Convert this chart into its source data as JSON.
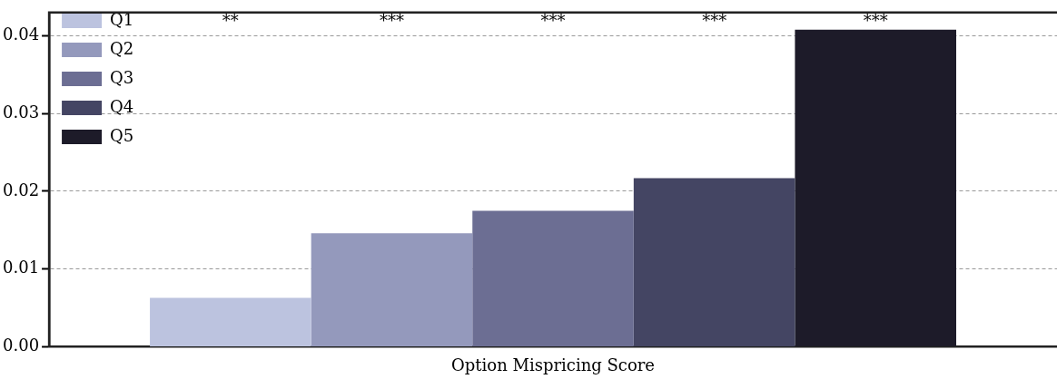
{
  "chart_data": {
    "type": "bar",
    "categories": [
      "Option Mispricing Score"
    ],
    "series": [
      {
        "name": "Q1",
        "color": "#bcc3df",
        "values": [
          0.0063
        ]
      },
      {
        "name": "Q2",
        "color": "#9499bc",
        "values": [
          0.0146
        ]
      },
      {
        "name": "Q3",
        "color": "#6c6e93",
        "values": [
          0.0175
        ]
      },
      {
        "name": "Q4",
        "color": "#444563",
        "values": [
          0.0217
        ]
      },
      {
        "name": "Q5",
        "color": "#1d1b29",
        "values": [
          0.0408
        ]
      }
    ],
    "ylim": [
      0,
      0.043
    ],
    "yticks": [
      {
        "value": 0,
        "label": "0.00"
      },
      {
        "value": 0.01,
        "label": "0.01"
      },
      {
        "value": 0.02,
        "label": "0.02"
      },
      {
        "value": 0.03,
        "label": "0.03"
      },
      {
        "value": 0.04,
        "label": "0.04"
      }
    ],
    "grid": "y",
    "legend": "top left",
    "annotations": [
      "**",
      "***",
      "***",
      "***",
      "***"
    ]
  }
}
